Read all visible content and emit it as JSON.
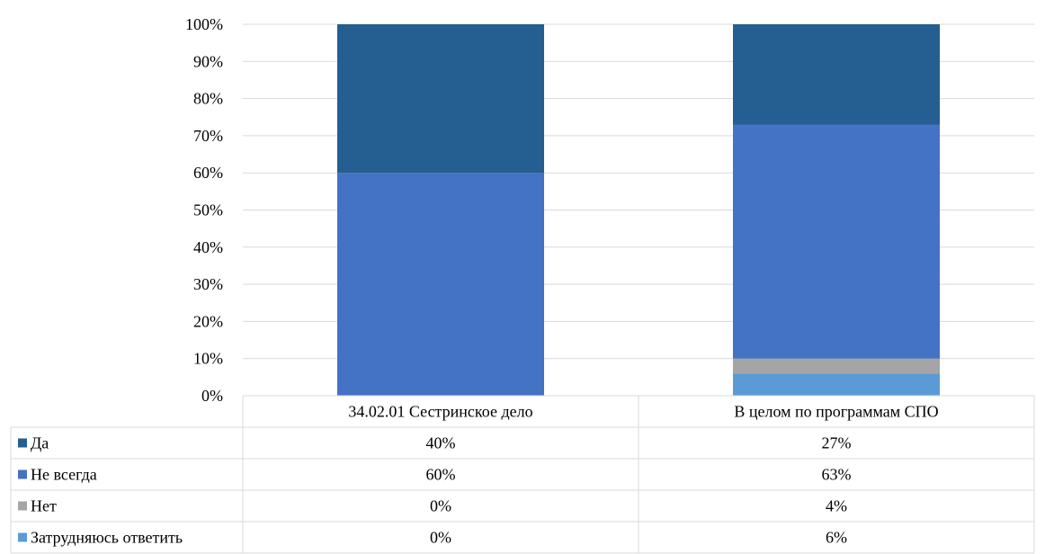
{
  "chart_data": {
    "type": "bar",
    "stacked": true,
    "percent": true,
    "categories": [
      "34.02.01 Сестринское дело",
      "В целом по программам СПО"
    ],
    "series": [
      {
        "name": "Затрудняюсь ответить",
        "values": [
          0,
          6
        ],
        "labels": [
          "0%",
          "6%"
        ],
        "color": "#5B9BD5"
      },
      {
        "name": "Нет",
        "values": [
          0,
          4
        ],
        "labels": [
          "0%",
          "4%"
        ],
        "color": "#A5A5A5"
      },
      {
        "name": "Не всегда",
        "values": [
          60,
          63
        ],
        "labels": [
          "60%",
          "63%"
        ],
        "color": "#4472C4"
      },
      {
        "name": "Да",
        "values": [
          40,
          27
        ],
        "labels": [
          "40%",
          "27%"
        ],
        "color": "#255E91"
      }
    ],
    "table_order": [
      "Да",
      "Не всегда",
      "Нет",
      "Затрудняюсь ответить"
    ],
    "ylim": [
      0,
      100
    ],
    "yticks": [
      "0%",
      "10%",
      "20%",
      "30%",
      "40%",
      "50%",
      "60%",
      "70%",
      "80%",
      "90%",
      "100%"
    ],
    "grid": true,
    "legend": "data-table",
    "title": "",
    "xlabel": "",
    "ylabel": ""
  }
}
